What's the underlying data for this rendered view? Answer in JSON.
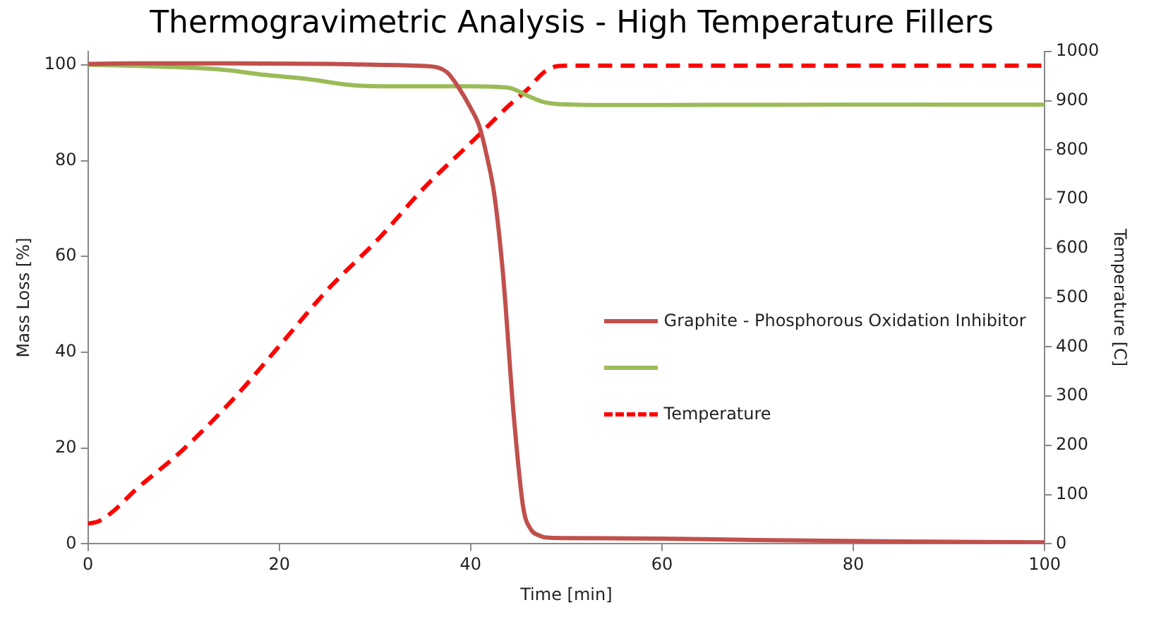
{
  "chart_data": {
    "type": "line",
    "title": "Thermogravimetric Analysis - High Temperature Fillers",
    "xlabel": "Time [min]",
    "ylabel": "Mass Loss [%]",
    "y2label": "Temperature [C]",
    "xlim": [
      0,
      100
    ],
    "xticks": [
      0,
      20,
      40,
      60,
      80,
      100
    ],
    "ylim": [
      0,
      102.8
    ],
    "yticks": [
      0,
      20,
      40,
      60,
      80,
      100
    ],
    "y2lim": [
      0,
      1000
    ],
    "y2ticks": [
      0,
      100,
      200,
      300,
      400,
      500,
      600,
      700,
      800,
      900,
      1000
    ],
    "grid": false,
    "legend": "right",
    "marker": "none",
    "series": [
      {
        "name": "Graphite - Phosphorous Oxidation Inhibitor",
        "color": "#c0504d",
        "line_style": "solid",
        "x": [
          0,
          5,
          15,
          25,
          30,
          35.6,
          37.5,
          38.7,
          40,
          40.9,
          41.8,
          42.5,
          43.4,
          44.5,
          45.5,
          46.3,
          47.1,
          48,
          50,
          60,
          70,
          85,
          100
        ],
        "values": [
          100.2,
          100.3,
          100.3,
          100.2,
          100,
          99.7,
          98.5,
          95.4,
          91,
          87.2,
          80,
          72.6,
          56,
          27,
          7.6,
          3,
          1.8,
          1.3,
          1.2,
          1.1,
          0.8,
          0.5,
          0.3
        ]
      },
      {
        "color": "#9bbb59",
        "line_style": "solid",
        "x": [
          0,
          5,
          11.8,
          15,
          18.5,
          22.7,
          27.9,
          31.5,
          40,
          44,
          46,
          47.5,
          49.1,
          55,
          60,
          80,
          100
        ],
        "values": [
          100,
          99.8,
          99.3,
          98.8,
          97.9,
          97.1,
          95.7,
          95.5,
          95.5,
          95.2,
          93.5,
          92.3,
          91.8,
          91.6,
          91.6,
          91.7,
          91.7
        ]
      },
      {
        "name": "Temperature",
        "color": "#ff0000",
        "line_style": "dashed",
        "axis": "y2",
        "x": [
          0,
          1,
          2.5,
          5,
          9.7,
          15,
          20.1,
          25,
          30.5,
          35,
          40.8,
          44,
          46,
          47.5,
          48.6,
          50,
          60,
          80,
          100
        ],
        "values": [
          41,
          45,
          64,
          110,
          187,
          290,
          404,
          515,
          622,
          720,
          829,
          890,
          924,
          955,
          968,
          971,
          971,
          971,
          971
        ]
      }
    ]
  }
}
